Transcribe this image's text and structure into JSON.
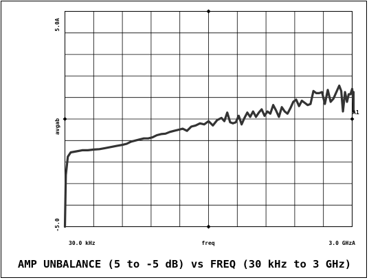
{
  "chart_data": {
    "type": "line",
    "title": "AMP UNBALANCE (5 to -5 dB) vs FREQ (30 kHz to 3 GHz)",
    "ylabel": "avgab",
    "xlabel": "freq",
    "ylim": [
      -5.0,
      5.0
    ],
    "y_tick_labels": {
      "top": "5.0A",
      "mid": "avgab",
      "bottom": "-5.0"
    },
    "x_tick_labels": {
      "left": "30.0 kHz",
      "mid": "freq",
      "right": "3.0 GHzA"
    },
    "marker_label": "A1",
    "grid": true,
    "series": [
      {
        "values": [
          [
            0.0,
            -5.0
          ],
          [
            0.003,
            -2.6
          ],
          [
            0.01,
            -1.75
          ],
          [
            0.02,
            -1.55
          ],
          [
            0.04,
            -1.5
          ],
          [
            0.06,
            -1.45
          ],
          [
            0.08,
            -1.45
          ],
          [
            0.1,
            -1.42
          ],
          [
            0.12,
            -1.4
          ],
          [
            0.14,
            -1.35
          ],
          [
            0.16,
            -1.3
          ],
          [
            0.18,
            -1.25
          ],
          [
            0.2,
            -1.2
          ],
          [
            0.215,
            -1.15
          ],
          [
            0.23,
            -1.05
          ],
          [
            0.245,
            -1.0
          ],
          [
            0.26,
            -0.95
          ],
          [
            0.275,
            -0.9
          ],
          [
            0.29,
            -0.9
          ],
          [
            0.305,
            -0.85
          ],
          [
            0.32,
            -0.75
          ],
          [
            0.335,
            -0.7
          ],
          [
            0.35,
            -0.68
          ],
          [
            0.365,
            -0.6
          ],
          [
            0.38,
            -0.55
          ],
          [
            0.395,
            -0.5
          ],
          [
            0.41,
            -0.45
          ],
          [
            0.425,
            -0.55
          ],
          [
            0.44,
            -0.35
          ],
          [
            0.455,
            -0.3
          ],
          [
            0.47,
            -0.2
          ],
          [
            0.485,
            -0.25
          ],
          [
            0.5,
            -0.1
          ],
          [
            0.515,
            -0.3
          ],
          [
            0.53,
            -0.05
          ],
          [
            0.545,
            0.05
          ],
          [
            0.555,
            -0.1
          ],
          [
            0.565,
            0.3
          ],
          [
            0.575,
            -0.15
          ],
          [
            0.585,
            -0.2
          ],
          [
            0.595,
            -0.15
          ],
          [
            0.605,
            0.15
          ],
          [
            0.615,
            -0.25
          ],
          [
            0.625,
            0.05
          ],
          [
            0.635,
            0.3
          ],
          [
            0.645,
            0.1
          ],
          [
            0.655,
            0.35
          ],
          [
            0.665,
            0.1
          ],
          [
            0.675,
            0.3
          ],
          [
            0.685,
            0.45
          ],
          [
            0.695,
            0.15
          ],
          [
            0.705,
            0.35
          ],
          [
            0.715,
            0.25
          ],
          [
            0.725,
            0.65
          ],
          [
            0.735,
            0.4
          ],
          [
            0.745,
            0.1
          ],
          [
            0.755,
            0.55
          ],
          [
            0.765,
            0.35
          ],
          [
            0.775,
            0.25
          ],
          [
            0.785,
            0.5
          ],
          [
            0.795,
            0.8
          ],
          [
            0.805,
            0.9
          ],
          [
            0.815,
            0.6
          ],
          [
            0.825,
            0.85
          ],
          [
            0.835,
            0.75
          ],
          [
            0.845,
            0.65
          ],
          [
            0.855,
            0.7
          ],
          [
            0.865,
            1.3
          ],
          [
            0.875,
            1.2
          ],
          [
            0.885,
            1.2
          ],
          [
            0.895,
            1.25
          ],
          [
            0.905,
            0.7
          ],
          [
            0.915,
            1.35
          ],
          [
            0.925,
            0.8
          ],
          [
            0.935,
            0.95
          ],
          [
            0.945,
            1.25
          ],
          [
            0.955,
            1.55
          ],
          [
            0.962,
            1.3
          ],
          [
            0.968,
            0.35
          ],
          [
            0.975,
            1.25
          ],
          [
            0.982,
            0.8
          ],
          [
            0.988,
            1.15
          ],
          [
            0.994,
            1.15
          ],
          [
            1.0,
            1.4
          ],
          [
            1.006,
            0.7
          ],
          [
            1.012,
            0.9
          ],
          [
            1.018,
            1.25
          ],
          [
            1.024,
            0.75
          ],
          [
            1.03,
            0.35
          ],
          [
            1.036,
            0.75
          ],
          [
            1.04,
            0.8
          ]
        ]
      }
    ]
  }
}
